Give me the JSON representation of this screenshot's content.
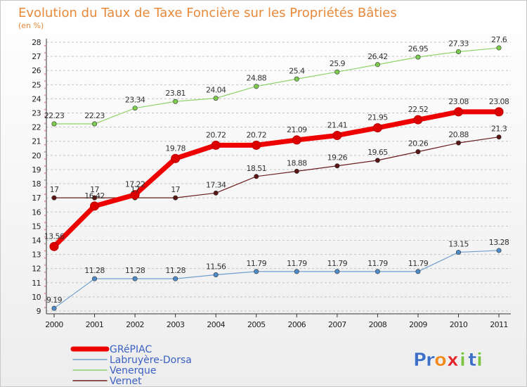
{
  "chart_data": {
    "type": "line",
    "title": "Evolution du Taux de Taxe Foncière sur les Propriétés Bâties",
    "subtitle": "(en %)",
    "xlabel": "",
    "ylabel": "",
    "x": [
      "2000",
      "2001",
      "2002",
      "2003",
      "2004",
      "2005",
      "2006",
      "2007",
      "2008",
      "2009",
      "2010",
      "2011"
    ],
    "ylim": [
      9,
      28
    ],
    "y_ticks": [
      9,
      10,
      11,
      12,
      13,
      14,
      15,
      16,
      17,
      18,
      19,
      20,
      21,
      22,
      23,
      24,
      25,
      26,
      27,
      28
    ],
    "grid": "horizontal dashed",
    "legend_position": "bottom-left",
    "series": [
      {
        "name": "Vernet",
        "color": "#6b1c1c",
        "marker": "#5a1414",
        "width": 1.2,
        "values": [
          17,
          17,
          17,
          17,
          17.34,
          18.51,
          18.88,
          19.26,
          19.65,
          20.26,
          20.88,
          21.3
        ],
        "labels": [
          "17",
          "17",
          "17",
          "17",
          "17.34",
          "18.51",
          "18.88",
          "19.26",
          "19.65",
          "20.26",
          "20.88",
          "21.3"
        ]
      },
      {
        "name": "Venerque",
        "color": "#8fd46a",
        "marker": "#7ccd4e",
        "width": 1.2,
        "values": [
          22.23,
          22.23,
          23.34,
          23.81,
          24.04,
          24.88,
          25.4,
          25.9,
          26.42,
          26.95,
          27.33,
          27.6
        ],
        "labels": [
          "22.23",
          "22.23",
          "23.34",
          "23.81",
          "24.04",
          "24.88",
          "25.4",
          "25.9",
          "26.42",
          "26.95",
          "27.33",
          "27.6"
        ]
      },
      {
        "name": "Labruyère-Dorsa",
        "color": "#6f9fce",
        "marker": "#4d8cc9",
        "width": 1.2,
        "values": [
          9.19,
          11.28,
          11.28,
          11.28,
          11.56,
          11.79,
          11.79,
          11.79,
          11.79,
          11.79,
          13.15,
          13.28
        ],
        "labels": [
          "9.19",
          "11.28",
          "11.28",
          "11.28",
          "11.56",
          "11.79",
          "11.79",
          "11.79",
          "11.79",
          "11.79",
          "13.15",
          "13.28"
        ]
      },
      {
        "name": "GRéPIAC",
        "color": "#ee0000",
        "marker": "#dd0000",
        "width": 7,
        "values": [
          13.56,
          16.42,
          17.22,
          19.78,
          20.72,
          20.72,
          21.09,
          21.41,
          21.95,
          22.52,
          23.08,
          23.08
        ],
        "labels": [
          "13.56",
          "16.42",
          "17.22",
          "19.78",
          "20.72",
          "20.72",
          "21.09",
          "21.41",
          "21.95",
          "22.52",
          "23.08",
          "23.08"
        ]
      }
    ],
    "legend": [
      {
        "name": "GRéPIAC",
        "color": "#ee0000",
        "thick": true
      },
      {
        "name": "Labruyère-Dorsa",
        "color": "#6f9fce",
        "thick": false
      },
      {
        "name": "Venerque",
        "color": "#8fd46a",
        "thick": false
      },
      {
        "name": "Vernet",
        "color": "#6b1c1c",
        "thick": false
      }
    ]
  },
  "branding": {
    "logo_text": "Proxiti",
    "logo_letters": [
      {
        "ch": "P",
        "color": "#3d6fc9"
      },
      {
        "ch": "r",
        "color": "#3d6fc9"
      },
      {
        "ch": "o",
        "color": "#ef8a1e"
      },
      {
        "ch": "x",
        "color": "#e3262c"
      },
      {
        "ch": "i",
        "color": "#7cc142"
      },
      {
        "ch": "t",
        "color": "#3d6fc9"
      },
      {
        "ch": "i",
        "color": "#7cc142"
      }
    ]
  }
}
